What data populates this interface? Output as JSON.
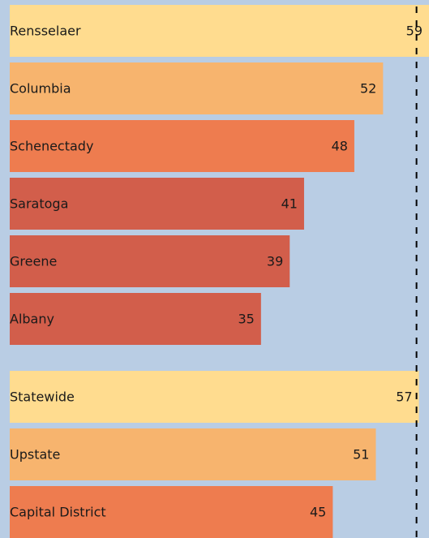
{
  "chart_data": [
    {
      "type": "bar",
      "categories": [
        "Rensselaer",
        "Columbia",
        "Schenectady",
        "Saratoga",
        "Greene",
        "Albany"
      ],
      "values": [
        59,
        52,
        48,
        41,
        39,
        35
      ],
      "colors": [
        "#ffdc8f",
        "#f7b46e",
        "#ee7c4f",
        "#d25e4b",
        "#d25e4b",
        "#d25e4b"
      ],
      "xlim": [
        0,
        58.4
      ]
    },
    {
      "type": "bar",
      "categories": [
        "Statewide",
        "Upstate",
        "Capital District"
      ],
      "values": [
        57,
        51,
        45
      ],
      "colors": [
        "#ffdc8f",
        "#f7b46e",
        "#ee7c4f"
      ],
      "xlim": [
        0,
        58.4
      ]
    }
  ]
}
